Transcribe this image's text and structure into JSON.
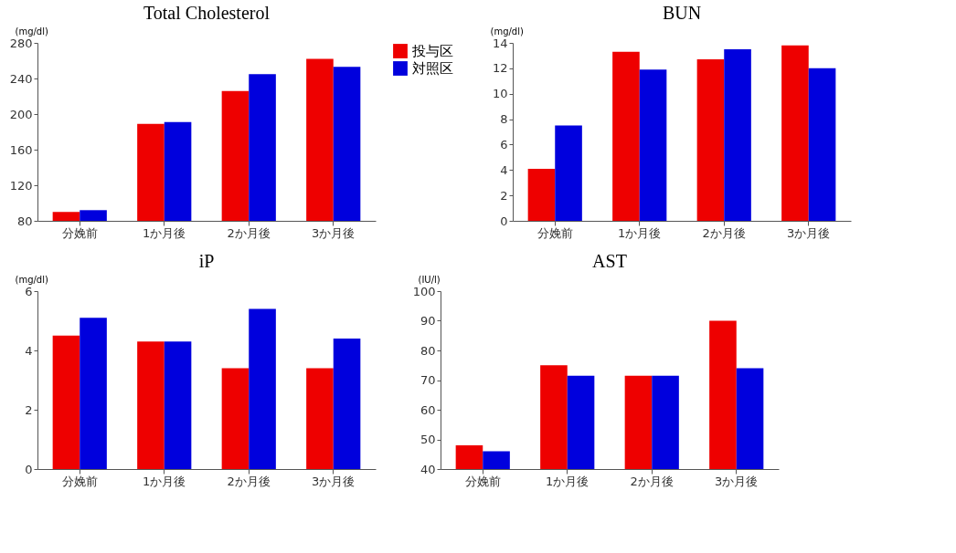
{
  "chart_data": [
    {
      "type": "bar",
      "title": "Total Cholesterol",
      "ylabel": "(mg/dl)",
      "categories": [
        "分娩前",
        "1か月後",
        "2か月後",
        "3か月後"
      ],
      "ylim": [
        80,
        280
      ],
      "yticks": [
        80,
        120,
        160,
        200,
        240,
        280
      ],
      "legend": "right",
      "series": [
        {
          "name": "投与区",
          "color": "#ee0000",
          "values": [
            90,
            189,
            226,
            262
          ]
        },
        {
          "name": "対照区",
          "color": "#0000dd",
          "values": [
            92,
            191,
            245,
            253
          ]
        }
      ]
    },
    {
      "type": "bar",
      "title": "BUN",
      "ylabel": "(mg/dl)",
      "categories": [
        "分娩前",
        "1か月後",
        "2か月後",
        "3か月後"
      ],
      "ylim": [
        0,
        14
      ],
      "yticks": [
        0,
        2,
        4,
        6,
        8,
        10,
        12,
        14
      ],
      "series": [
        {
          "color": "#ee0000",
          "values": [
            4.1,
            13.3,
            12.7,
            13.8
          ]
        },
        {
          "color": "#0000dd",
          "values": [
            7.5,
            11.9,
            13.5,
            12.0
          ]
        }
      ]
    },
    {
      "type": "bar",
      "title": "iP",
      "ylabel": "(mg/dl)",
      "categories": [
        "分娩前",
        "1か月後",
        "2か月後",
        "3か月後"
      ],
      "ylim": [
        0,
        6
      ],
      "yticks": [
        0,
        2,
        4,
        6
      ],
      "series": [
        {
          "color": "#ee0000",
          "values": [
            4.5,
            4.3,
            3.4,
            3.4
          ]
        },
        {
          "color": "#0000dd",
          "values": [
            5.1,
            4.3,
            5.4,
            4.4
          ]
        }
      ]
    },
    {
      "type": "bar",
      "title": "AST",
      "ylabel": "(IU/l)",
      "categories": [
        "分娩前",
        "1か月後",
        "2か月後",
        "3か月後"
      ],
      "ylim": [
        40,
        100
      ],
      "yticks": [
        40,
        50,
        60,
        70,
        80,
        90,
        100
      ],
      "series": [
        {
          "color": "#ee0000",
          "values": [
            48,
            75,
            71.5,
            90
          ]
        },
        {
          "color": "#0000dd",
          "values": [
            46,
            71.5,
            71.5,
            74
          ]
        }
      ]
    }
  ]
}
